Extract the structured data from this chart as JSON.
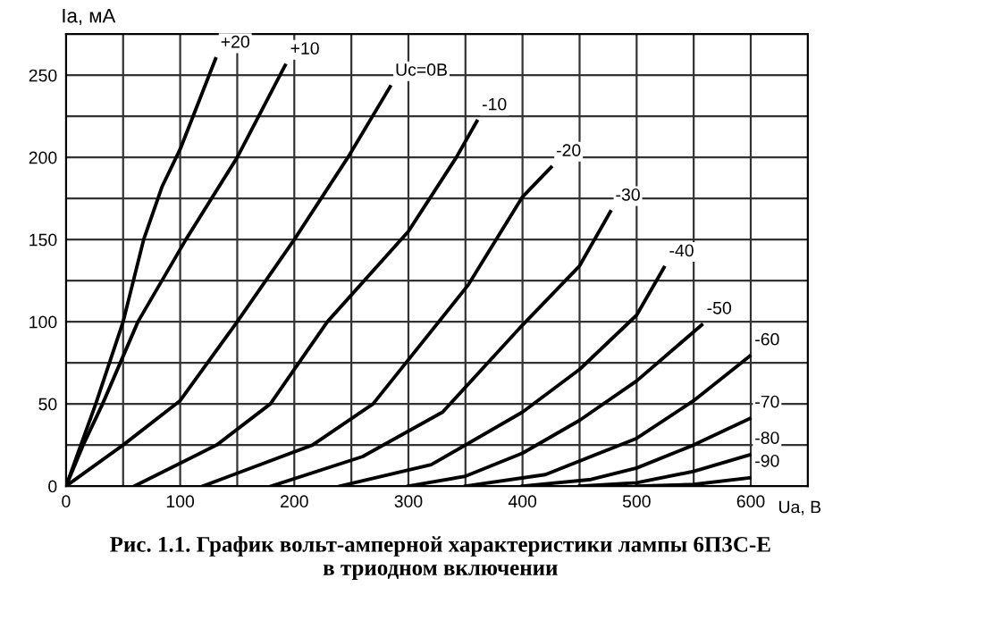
{
  "chart_data": {
    "type": "line",
    "xlabel": "Ua, B",
    "ylabel": "Ia, мА",
    "annotations": [
      "Рис. 1.1. График вольт-амперной характеристики лампы 6П3С-Е\nв триодном включении"
    ],
    "xlim": [
      0,
      650
    ],
    "ylim": [
      0,
      275
    ],
    "xticks": [
      0,
      {
        "value": 50,
        "label": null
      },
      100,
      {
        "value": 150,
        "label": null
      },
      200,
      {
        "value": 250,
        "label": null
      },
      300,
      {
        "value": 350,
        "label": null
      },
      400,
      {
        "value": 450,
        "label": null
      },
      500,
      {
        "value": 550,
        "label": null
      },
      600
    ],
    "yticks": [
      0,
      {
        "value": 25,
        "label": null
      },
      50,
      {
        "value": 75,
        "label": null
      },
      100,
      {
        "value": 125,
        "label": null
      },
      150,
      {
        "value": 175,
        "label": null
      },
      200,
      {
        "value": 225,
        "label": null
      },
      250
    ],
    "grid": true,
    "legend": false,
    "marker": "none",
    "line_style": "solid",
    "series": [
      {
        "name": "+20",
        "color": "#000000",
        "x": [
          0,
          26,
          50,
          68,
          84,
          100,
          131
        ],
        "values": [
          0,
          50,
          100,
          150,
          182,
          205,
          260
        ]
      },
      {
        "name": "+10",
        "color": "#000000",
        "x": [
          0,
          15,
          32,
          63,
          105,
          150,
          192
        ],
        "values": [
          0,
          25,
          50,
          100,
          150,
          200,
          256
        ]
      },
      {
        "name": "Uc=0B",
        "color": "#000000",
        "x": [
          0,
          50,
          100,
          150,
          200,
          247,
          284
        ],
        "values": [
          0,
          25,
          52,
          100,
          150,
          200,
          243
        ]
      },
      {
        "name": "-10",
        "color": "#000000",
        "x": [
          60,
          132,
          179,
          229,
          300,
          342,
          360
        ],
        "values": [
          0,
          25,
          50,
          100,
          155,
          200,
          222
        ]
      },
      {
        "name": "-20",
        "color": "#000000",
        "x": [
          120,
          216,
          269,
          352,
          400,
          425
        ],
        "values": [
          0,
          25,
          50,
          122,
          176,
          194
        ]
      },
      {
        "name": "-30",
        "color": "#000000",
        "x": [
          180,
          260,
          330,
          400,
          450,
          477
        ],
        "values": [
          0,
          18,
          45,
          98,
          134,
          167
        ]
      },
      {
        "name": "-40",
        "color": "#000000",
        "x": [
          240,
          320,
          400,
          450,
          500,
          524
        ],
        "values": [
          0,
          13,
          45,
          71,
          104,
          133
        ]
      },
      {
        "name": "-50",
        "color": "#000000",
        "x": [
          300,
          350,
          400,
          450,
          500,
          557
        ],
        "values": [
          0,
          6,
          20,
          40,
          64,
          98
        ]
      },
      {
        "name": "-60",
        "color": "#000000",
        "x": [
          350,
          420,
          500,
          550,
          599
        ],
        "values": [
          0,
          7,
          29,
          52,
          79
        ]
      },
      {
        "name": "-70",
        "color": "#000000",
        "x": [
          400,
          460,
          500,
          550,
          599
        ],
        "values": [
          0,
          4,
          11,
          25,
          41
        ]
      },
      {
        "name": "-80",
        "color": "#000000",
        "x": [
          450,
          500,
          550,
          599
        ],
        "values": [
          0,
          2,
          9,
          19
        ]
      },
      {
        "name": "-90",
        "color": "#000000",
        "x": [
          500,
          550,
          599
        ],
        "values": [
          0,
          1,
          5
        ]
      }
    ]
  }
}
